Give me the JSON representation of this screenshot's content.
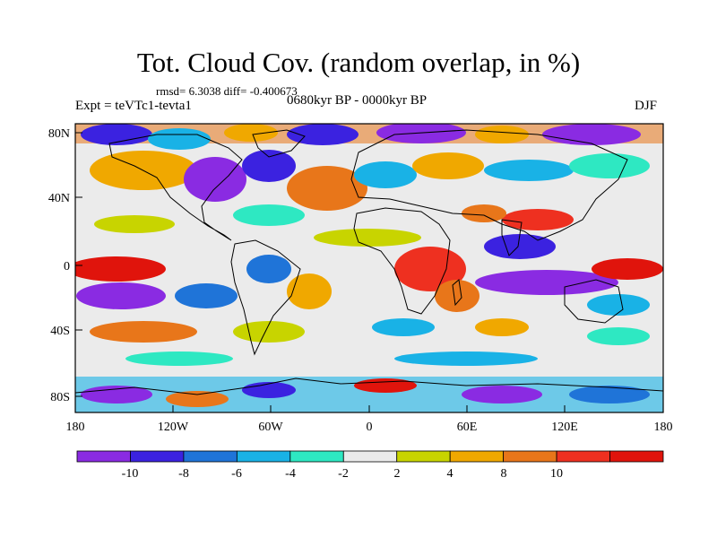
{
  "title": "Tot. Cloud Cov. (random overlap, in %)",
  "stats": "rmsd= 6.3038 diff= -0.400673",
  "experiment": "Expt = teVTc1-tevta1",
  "period": "0680kyr BP - 0000kyr BP",
  "season": "DJF",
  "lat_ticks": [
    "80N",
    "40N",
    "0",
    "40S",
    "80S"
  ],
  "lon_ticks": [
    "180",
    "120W",
    "60W",
    "0",
    "60E",
    "120E",
    "180"
  ],
  "colorbar": {
    "labels": [
      "-10",
      "-8",
      "-6",
      "-4",
      "-2",
      "2",
      "4",
      "8",
      "10"
    ],
    "colors": [
      "#8a2be2",
      "#3b22e0",
      "#1f74d8",
      "#19b2e6",
      "#2ee8c2",
      "#ebebeb",
      "#c8d400",
      "#f0a800",
      "#e8761a",
      "#ee3020",
      "#e0140c"
    ]
  }
}
